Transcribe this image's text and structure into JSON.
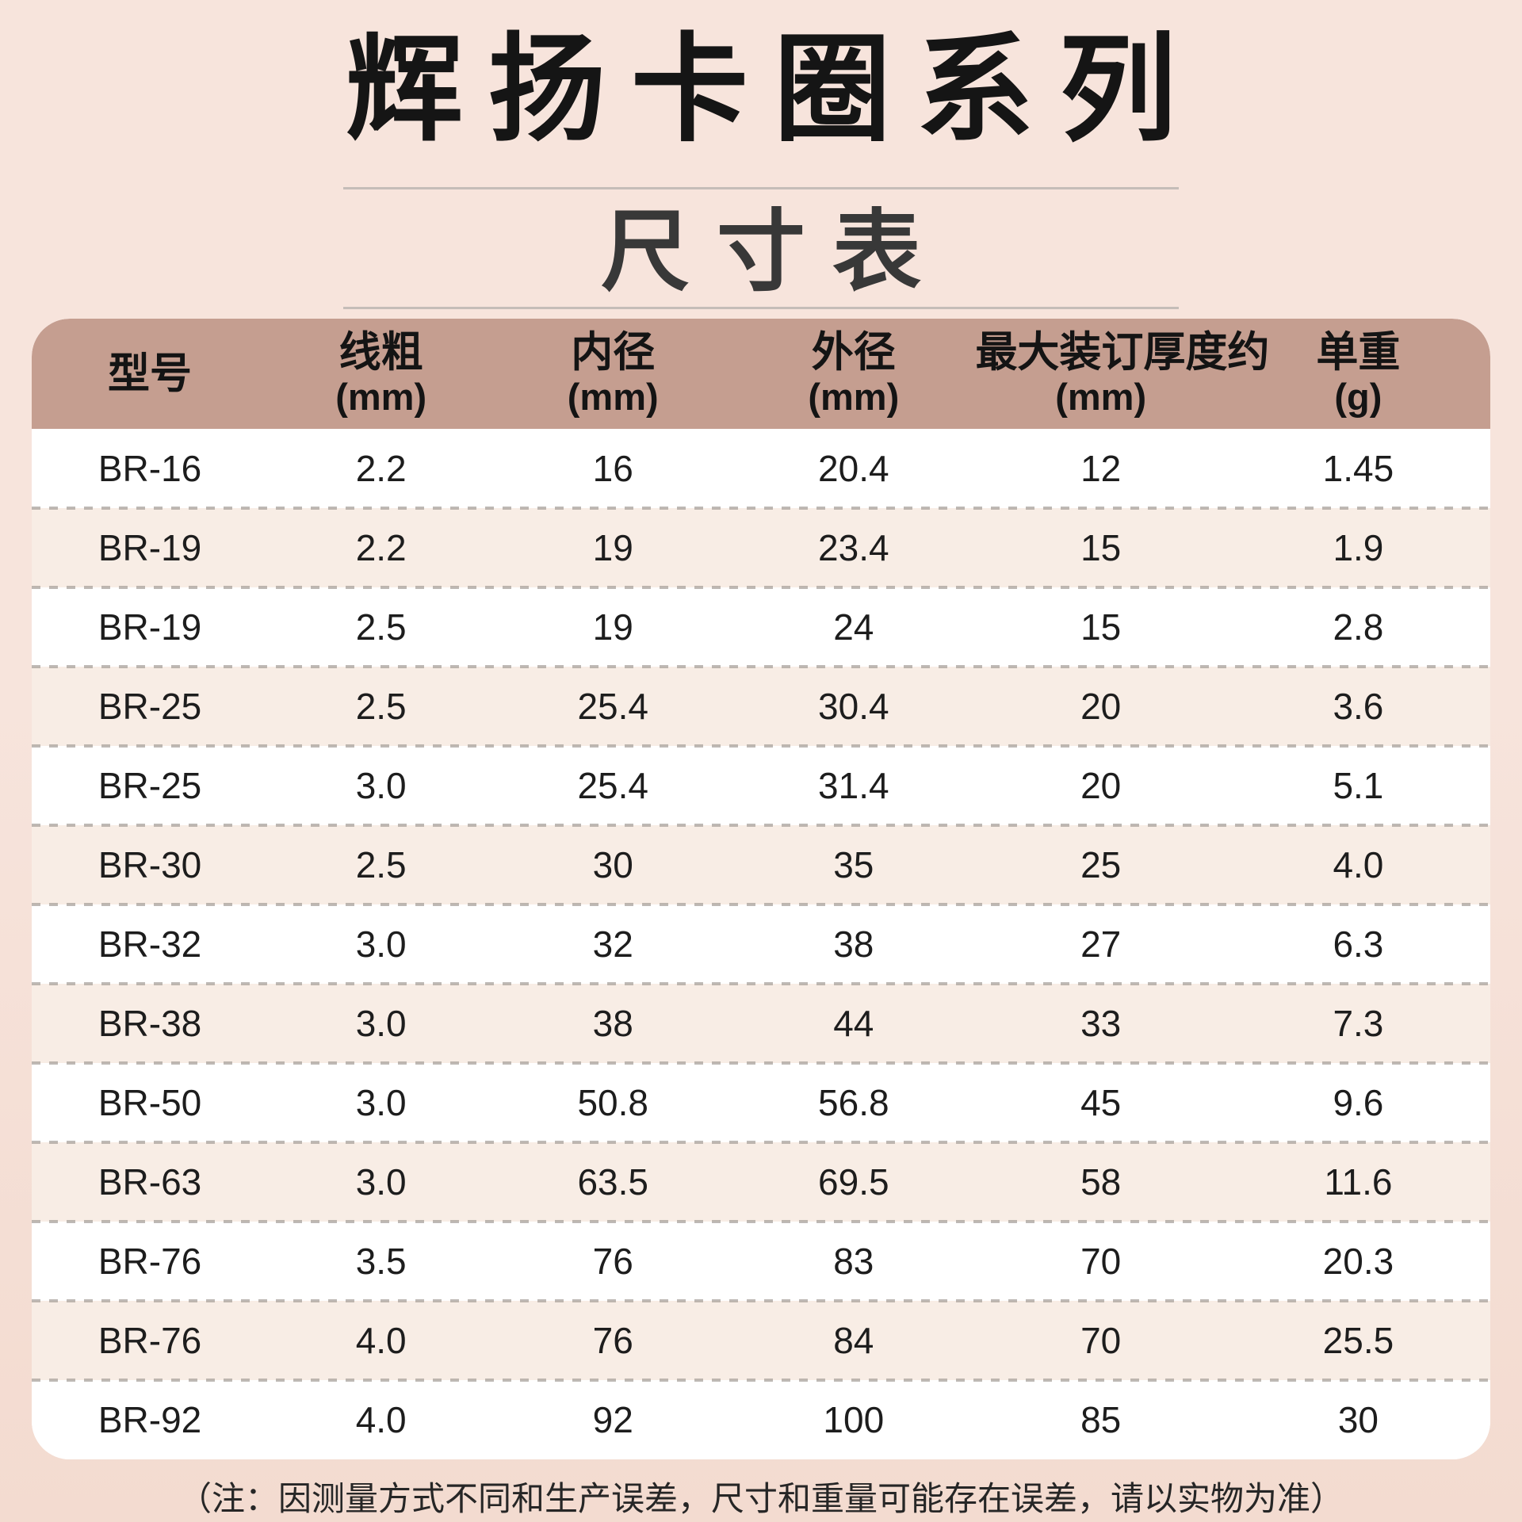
{
  "page": {
    "title": "辉扬卡圈系列",
    "subtitle": "尺寸表",
    "footnote": "（注：因测量方式不同和生产误差，尺寸和重量可能存在误差，请以实物为准）"
  },
  "table": {
    "columns": [
      {
        "label": "型号",
        "unit": ""
      },
      {
        "label": "线粗",
        "unit": "(mm)"
      },
      {
        "label": "内径",
        "unit": "(mm)"
      },
      {
        "label": "外径",
        "unit": "(mm)"
      },
      {
        "label": "最大装订厚度约",
        "unit": "(mm)"
      },
      {
        "label": "单重",
        "unit": "(g)"
      }
    ],
    "rows": [
      [
        "BR-16",
        "2.2",
        "16",
        "20.4",
        "12",
        "1.45"
      ],
      [
        "BR-19",
        "2.2",
        "19",
        "23.4",
        "15",
        "1.9"
      ],
      [
        "BR-19",
        "2.5",
        "19",
        "24",
        "15",
        "2.8"
      ],
      [
        "BR-25",
        "2.5",
        "25.4",
        "30.4",
        "20",
        "3.6"
      ],
      [
        "BR-25",
        "3.0",
        "25.4",
        "31.4",
        "20",
        "5.1"
      ],
      [
        "BR-30",
        "2.5",
        "30",
        "35",
        "25",
        "4.0"
      ],
      [
        "BR-32",
        "3.0",
        "32",
        "38",
        "27",
        "6.3"
      ],
      [
        "BR-38",
        "3.0",
        "38",
        "44",
        "33",
        "7.3"
      ],
      [
        "BR-50",
        "3.0",
        "50.8",
        "56.8",
        "45",
        "9.6"
      ],
      [
        "BR-63",
        "3.0",
        "63.5",
        "69.5",
        "58",
        "11.6"
      ],
      [
        "BR-76",
        "3.5",
        "76",
        "83",
        "70",
        "20.3"
      ],
      [
        "BR-76",
        "4.0",
        "76",
        "84",
        "70",
        "25.5"
      ],
      [
        "BR-92",
        "4.0",
        "92",
        "100",
        "85",
        "30"
      ]
    ]
  },
  "colors": {
    "page_bg": "#f7e4dc",
    "page_bg_bottom": "#f3dbd0",
    "header_bg": "#c59e90",
    "row_alt": "#f8ede5",
    "row_white": "#ffffff",
    "dash": "#a9a29c",
    "divider": "#c5bdb8",
    "title": "#151515",
    "subtitle": "#383838",
    "text": "#1d1d1d",
    "footnote": "#262626"
  }
}
